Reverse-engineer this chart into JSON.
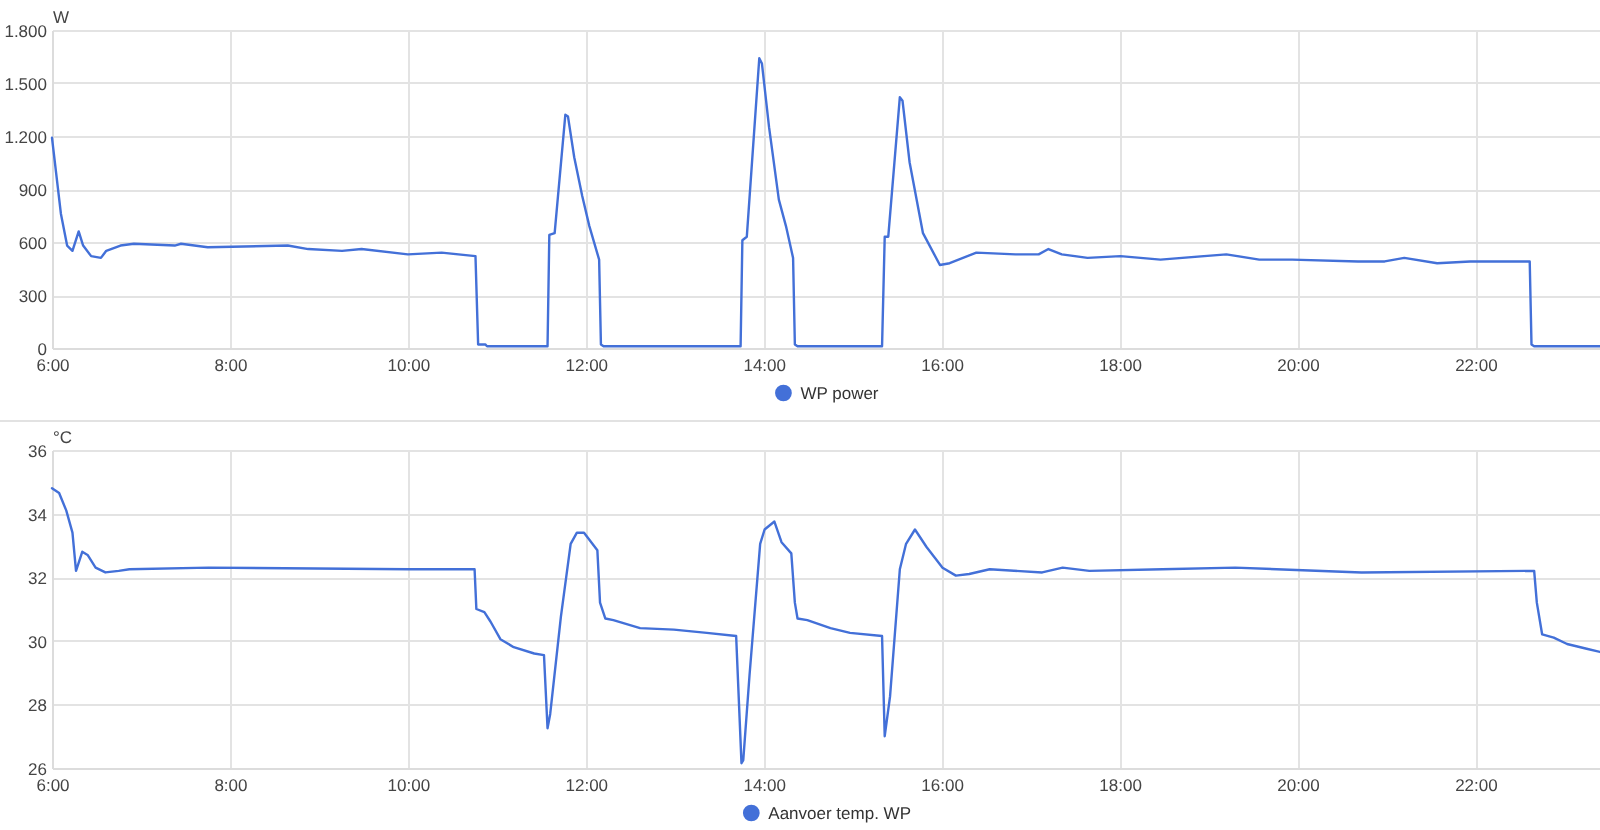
{
  "chart_data": [
    {
      "type": "line",
      "ylabel": "W",
      "x": [
        6.0,
        6.1,
        6.17,
        6.23,
        6.3,
        6.35,
        6.44,
        6.55,
        6.61,
        6.77,
        6.92,
        7.38,
        7.45,
        7.75,
        8.65,
        8.88,
        9.26,
        9.48,
        10.0,
        10.38,
        10.76,
        10.79,
        10.87,
        10.89,
        11.57,
        11.59,
        11.65,
        11.77,
        11.8,
        11.87,
        11.96,
        12.04,
        12.15,
        12.17,
        12.2,
        13.74,
        13.76,
        13.81,
        13.95,
        13.98,
        14.06,
        14.17,
        14.25,
        14.33,
        14.35,
        14.38,
        15.33,
        15.36,
        15.4,
        15.53,
        15.56,
        15.64,
        15.79,
        15.98,
        16.09,
        16.39,
        16.83,
        17.09,
        17.2,
        17.35,
        17.64,
        18.01,
        18.46,
        19.2,
        19.57,
        19.94,
        20.68,
        20.98,
        21.2,
        21.57,
        21.94,
        22.61,
        22.63,
        22.66,
        23.4
      ],
      "series": [
        {
          "name": "WP power",
          "color": "#4370d8",
          "values": [
            1190,
            760,
            580,
            550,
            660,
            580,
            520,
            510,
            550,
            580,
            590,
            580,
            590,
            570,
            580,
            560,
            550,
            560,
            530,
            540,
            520,
            20,
            20,
            10,
            10,
            640,
            650,
            1320,
            1310,
            1080,
            860,
            690,
            500,
            20,
            10,
            10,
            610,
            630,
            1640,
            1610,
            1250,
            840,
            690,
            510,
            20,
            10,
            10,
            630,
            630,
            1420,
            1400,
            1050,
            650,
            470,
            480,
            540,
            530,
            530,
            560,
            530,
            510,
            520,
            500,
            530,
            500,
            500,
            490,
            490,
            510,
            480,
            490,
            490,
            20,
            10,
            10
          ]
        }
      ],
      "xlim": [
        6,
        23.4
      ],
      "xticks": [
        {
          "value": 6,
          "label": "6:00"
        },
        {
          "value": 8,
          "label": "8:00"
        },
        {
          "value": 10,
          "label": "10:00"
        },
        {
          "value": 12,
          "label": "12:00"
        },
        {
          "value": 14,
          "label": "14:00"
        },
        {
          "value": 16,
          "label": "16:00"
        },
        {
          "value": 18,
          "label": "18:00"
        },
        {
          "value": 20,
          "label": "20:00"
        },
        {
          "value": 22,
          "label": "22:00"
        }
      ],
      "ylim": [
        0,
        1800
      ],
      "yticks": [
        0,
        300,
        600,
        900,
        {
          "value": 1200,
          "label": "1.200"
        },
        {
          "value": 1500,
          "label": "1.500"
        },
        {
          "value": 1800,
          "label": "1.800"
        }
      ],
      "grid": true,
      "legend": "bottom"
    },
    {
      "type": "line",
      "ylabel": "°C",
      "x": [
        6.0,
        6.08,
        6.16,
        6.23,
        6.27,
        6.34,
        6.4,
        6.49,
        6.6,
        6.75,
        6.87,
        7.76,
        10.0,
        10.75,
        10.77,
        10.86,
        10.93,
        11.04,
        11.19,
        11.42,
        11.53,
        11.57,
        11.6,
        11.72,
        11.83,
        11.9,
        11.98,
        12.13,
        12.16,
        12.22,
        12.31,
        12.61,
        12.99,
        13.36,
        13.69,
        13.72,
        13.75,
        13.77,
        13.84,
        13.96,
        14.01,
        14.12,
        14.2,
        14.31,
        14.35,
        14.38,
        14.49,
        14.75,
        14.97,
        15.33,
        15.36,
        15.42,
        15.53,
        15.6,
        15.7,
        15.83,
        16.01,
        16.16,
        16.31,
        16.54,
        17.13,
        17.36,
        17.66,
        18.48,
        19.3,
        20.72,
        22.66,
        22.69,
        22.75,
        22.88,
        23.03,
        23.25,
        23.4
      ],
      "series": [
        {
          "name": "Aanvoer temp. WP",
          "color": "#4370d8",
          "values": [
            34.8,
            34.65,
            34.1,
            33.4,
            32.2,
            32.8,
            32.7,
            32.3,
            32.15,
            32.2,
            32.25,
            32.3,
            32.25,
            32.25,
            31.0,
            30.9,
            30.6,
            30.05,
            29.8,
            29.6,
            29.55,
            27.25,
            27.7,
            30.75,
            33.05,
            33.4,
            33.4,
            32.85,
            31.2,
            30.7,
            30.65,
            30.4,
            30.35,
            30.25,
            30.15,
            28.15,
            26.15,
            26.25,
            28.9,
            33.05,
            33.5,
            33.75,
            33.1,
            32.75,
            31.2,
            30.7,
            30.65,
            30.4,
            30.25,
            30.15,
            27.0,
            28.25,
            32.25,
            33.05,
            33.5,
            32.95,
            32.3,
            32.05,
            32.1,
            32.25,
            32.15,
            32.3,
            32.2,
            32.25,
            32.3,
            32.15,
            32.2,
            31.2,
            30.2,
            30.1,
            29.9,
            29.75,
            29.65
          ]
        }
      ],
      "xlim": [
        6,
        23.4
      ],
      "xticks": [
        {
          "value": 6,
          "label": "6:00"
        },
        {
          "value": 8,
          "label": "8:00"
        },
        {
          "value": 10,
          "label": "10:00"
        },
        {
          "value": 12,
          "label": "12:00"
        },
        {
          "value": 14,
          "label": "14:00"
        },
        {
          "value": 16,
          "label": "16:00"
        },
        {
          "value": 18,
          "label": "18:00"
        },
        {
          "value": 20,
          "label": "20:00"
        },
        {
          "value": 22,
          "label": "22:00"
        }
      ],
      "ylim": [
        26,
        36
      ],
      "yticks": [
        26,
        28,
        30,
        32,
        34,
        36
      ],
      "grid": true,
      "legend": "bottom"
    }
  ]
}
